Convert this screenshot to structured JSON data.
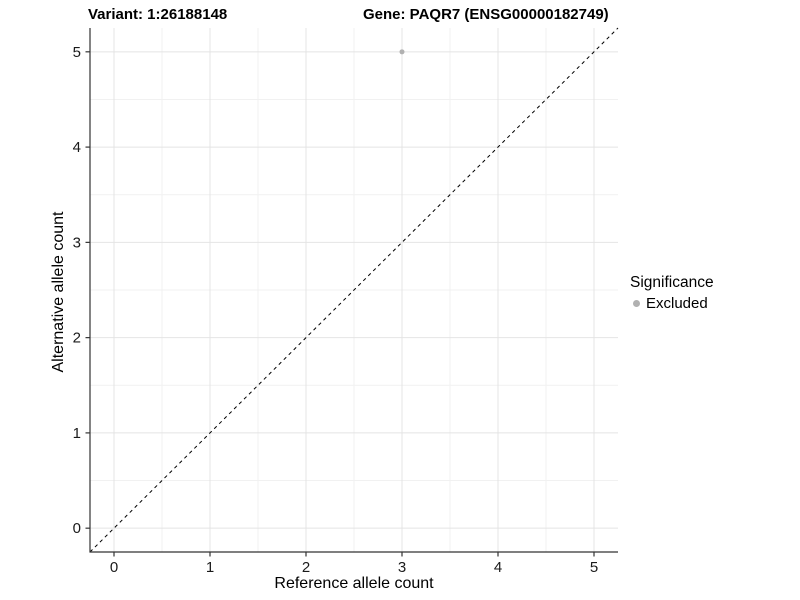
{
  "chart_data": {
    "type": "scatter",
    "titles": {
      "left": "Variant: 1:26188148",
      "right": "Gene: PAQR7 (ENSG00000182749)"
    },
    "xlabel": "Reference allele count",
    "ylabel": "Alternative allele count",
    "xlim": [
      -0.25,
      5.25
    ],
    "ylim": [
      -0.25,
      5.25
    ],
    "x_ticks": [
      0,
      1,
      2,
      3,
      4,
      5
    ],
    "y_ticks": [
      0,
      1,
      2,
      3,
      4,
      5
    ],
    "x_minor_ticks": [
      0.5,
      1.5,
      2.5,
      3.5,
      4.5
    ],
    "y_minor_ticks": [
      0.5,
      1.5,
      2.5,
      3.5,
      4.5
    ],
    "grid": true,
    "series": [
      {
        "name": "Excluded",
        "color": "#b1b1b1",
        "points": [
          {
            "x": 3,
            "y": 5
          }
        ]
      }
    ],
    "reference_line": {
      "slope": 1,
      "intercept": 0,
      "style": "dashed",
      "color": "#000000"
    },
    "legend": {
      "title": "Significance",
      "position": "right",
      "items": [
        {
          "label": "Excluded",
          "color": "#b1b1b1"
        }
      ]
    },
    "colors": {
      "grid_major": "#e4e4e4",
      "grid_minor": "#f1f1f1",
      "axis_line": "#333333",
      "tick_text": "#1a1a1a",
      "background": "#ffffff"
    }
  }
}
